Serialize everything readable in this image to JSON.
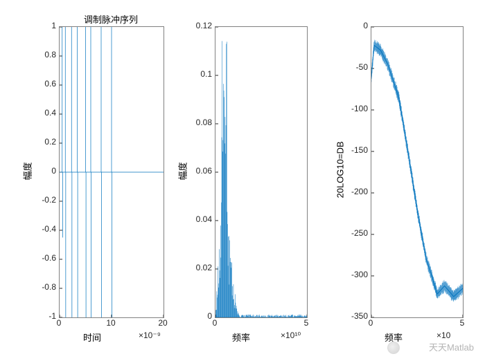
{
  "figure": {
    "background_color": "#ffffff",
    "line_color": "#0072bd",
    "axis_color": "#808080",
    "text_color": "#262626",
    "font_family": "Arial"
  },
  "watermark": "天天Matlab",
  "panels": [
    {
      "title": "调制脉冲序列",
      "title_fontsize": 13,
      "xlabel": "时间",
      "ylabel": "幅度",
      "label_fontsize": 13,
      "xlim": [
        0,
        20
      ],
      "ylim": [
        -1,
        1
      ],
      "xticks": [
        0,
        10,
        20
      ],
      "yticks": [
        -1,
        -0.8,
        -0.6,
        -0.4,
        -0.2,
        0,
        0.2,
        0.4,
        0.6,
        0.8,
        1
      ],
      "x_exp": "×10⁻⁹",
      "type": "pulse-train",
      "pulse_x": [
        0.5,
        1.1,
        2.3,
        3.4,
        5.0,
        6.0,
        8.0,
        10.0
      ],
      "pulse_neg_depth": [
        -0.45,
        -1,
        -1,
        -1,
        -1,
        -1,
        -1,
        -1
      ]
    },
    {
      "title": "",
      "xlabel": "频率",
      "ylabel": "幅度",
      "label_fontsize": 13,
      "xlim": [
        0,
        5
      ],
      "ylim": [
        0,
        0.12
      ],
      "xticks": [
        0,
        5
      ],
      "yticks": [
        0,
        0.02,
        0.04,
        0.06,
        0.08,
        0.1,
        0.12
      ],
      "x_exp": "×10¹⁰",
      "type": "spectrum",
      "peak_x": 0.6,
      "peak_height": 0.118,
      "decay_end": 1.4
    },
    {
      "title": "",
      "xlabel": "频率",
      "ylabel": "20LOG10=DB",
      "label_fontsize": 13,
      "xlim": [
        0,
        5
      ],
      "ylim": [
        -350,
        0
      ],
      "xticks": [
        0,
        5
      ],
      "yticks": [
        -350,
        -300,
        -250,
        -200,
        -150,
        -100,
        -50,
        0
      ],
      "x_exp": "×10",
      "type": "db-curve",
      "curve": [
        [
          0.0,
          -60
        ],
        [
          0.15,
          -22
        ],
        [
          0.5,
          -28
        ],
        [
          0.9,
          -45
        ],
        [
          1.5,
          -85
        ],
        [
          2.0,
          -150
        ],
        [
          2.5,
          -220
        ],
        [
          3.0,
          -280
        ],
        [
          3.3,
          -300
        ],
        [
          3.6,
          -322
        ],
        [
          4.0,
          -312
        ],
        [
          4.5,
          -325
        ],
        [
          5.0,
          -315
        ]
      ],
      "noise_band": 8
    }
  ]
}
